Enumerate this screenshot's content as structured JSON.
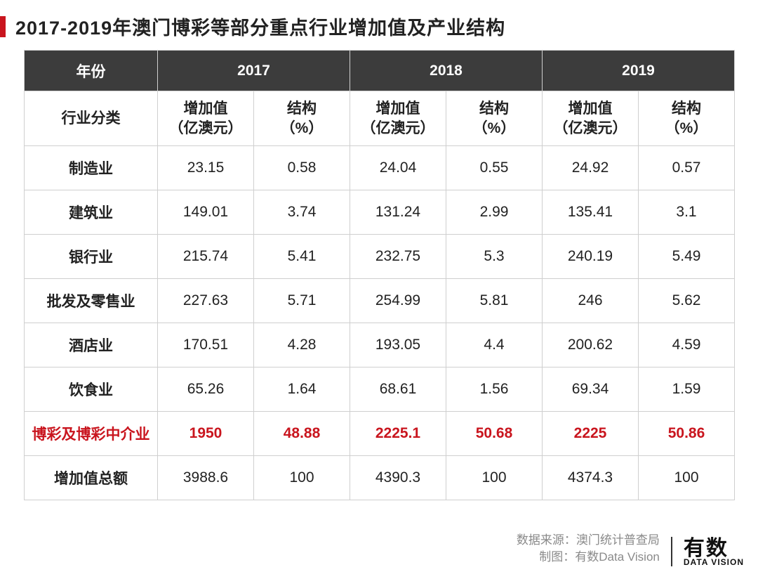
{
  "title": "2017-2019年澳门博彩等部分重点行业增加值及产业结构",
  "accent_color": "#c9151e",
  "header_bg": "#3c3c3c",
  "border_color": "#cfcfcf",
  "table": {
    "year_header_label": "年份",
    "category_header_label": "行业分类",
    "years": [
      "2017",
      "2018",
      "2019"
    ],
    "sub_headers": {
      "value": "增加值\n（亿澳元）",
      "share": "结构\n（%）"
    },
    "rows": [
      {
        "category": "制造业",
        "v": [
          "23.15",
          "0.58",
          "24.04",
          "0.55",
          "24.92",
          "0.57"
        ],
        "highlight": false
      },
      {
        "category": "建筑业",
        "v": [
          "149.01",
          "3.74",
          "131.24",
          "2.99",
          "135.41",
          "3.1"
        ],
        "highlight": false
      },
      {
        "category": "银行业",
        "v": [
          "215.74",
          "5.41",
          "232.75",
          "5.3",
          "240.19",
          "5.49"
        ],
        "highlight": false
      },
      {
        "category": "批发及零售业",
        "v": [
          "227.63",
          "5.71",
          "254.99",
          "5.81",
          "246",
          "5.62"
        ],
        "highlight": false
      },
      {
        "category": "酒店业",
        "v": [
          "170.51",
          "4.28",
          "193.05",
          "4.4",
          "200.62",
          "4.59"
        ],
        "highlight": false
      },
      {
        "category": "饮食业",
        "v": [
          "65.26",
          "1.64",
          "68.61",
          "1.56",
          "69.34",
          "1.59"
        ],
        "highlight": false
      },
      {
        "category": "博彩及博彩中介业",
        "v": [
          "1950",
          "48.88",
          "2225.1",
          "50.68",
          "2225",
          "50.86"
        ],
        "highlight": true
      },
      {
        "category": "增加值总额",
        "v": [
          "3988.6",
          "100",
          "4390.3",
          "100",
          "4374.3",
          "100"
        ],
        "highlight": false
      }
    ]
  },
  "footer": {
    "source_label": "数据来源：澳门统计普查局",
    "credit_label": "制图：有数Data Vision",
    "logo_big": "有数",
    "logo_small": "DATA VISION"
  }
}
